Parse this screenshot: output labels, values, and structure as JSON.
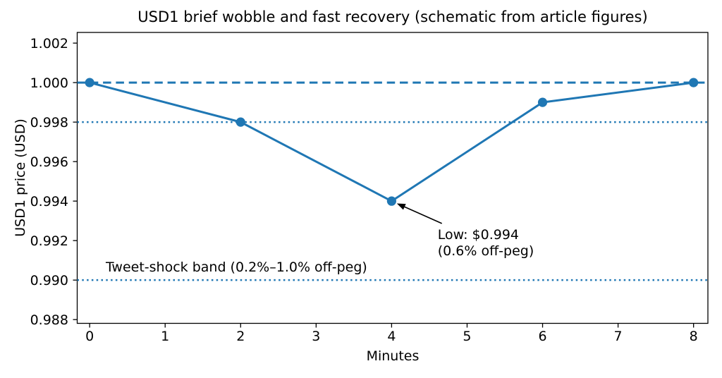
{
  "chart_data": {
    "type": "line",
    "title": "USD1 brief wobble and fast recovery (schematic from article figures)",
    "xlabel": "Minutes",
    "ylabel": "USD1 price (USD)",
    "x": [
      0,
      2,
      4,
      6,
      8
    ],
    "y": [
      1.0,
      0.998,
      0.994,
      0.999,
      1.0
    ],
    "xticks": [
      0,
      1,
      2,
      3,
      4,
      5,
      6,
      7,
      8
    ],
    "yticks": [
      0.988,
      0.99,
      0.992,
      0.994,
      0.996,
      0.998,
      1.0,
      1.002
    ],
    "xlim": [
      -0.165,
      8.19
    ],
    "ylim": [
      0.98781,
      1.00254
    ],
    "grid": false,
    "legend": null,
    "series": [
      {
        "name": "USD1 price",
        "color": "#1f77b4",
        "marker": "circle",
        "marker_radius": 6.6,
        "line_width": 3
      }
    ],
    "ref_lines": [
      {
        "y": 1.0,
        "style": "dashed",
        "color": "#1f77b4",
        "name": "peg-line-1.000"
      },
      {
        "y": 0.998,
        "style": "dotted",
        "color": "#1f77b4",
        "name": "band-upper-0.998"
      },
      {
        "y": 0.99,
        "style": "dotted",
        "color": "#1f77b4",
        "name": "band-lower-0.990"
      }
    ],
    "annotations": [
      {
        "id": "low-point",
        "text": "Low: $0.994\n(0.6% off-peg)",
        "xy": [
          4,
          0.994
        ],
        "xytext": [
          4.61,
          0.99269
        ],
        "arrow": true,
        "color": "#000000"
      },
      {
        "id": "tweet-shock-band",
        "text": "Tweet-shock band (0.2%–1.0% off-peg)",
        "xytext": [
          0.213,
          0.99104
        ],
        "arrow": false,
        "color": "#000000"
      }
    ],
    "colors": {
      "accent_blue": "#1f77b4",
      "axis": "#000000",
      "background": "#ffffff"
    }
  }
}
